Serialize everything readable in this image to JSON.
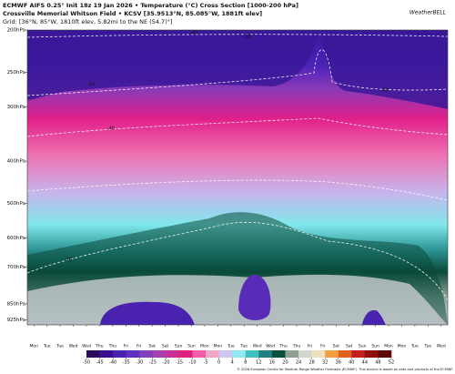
{
  "chart_data": {
    "type": "cross-section",
    "title": "ECMWF AIFS 0.25° Init 18z 19 Jan 2026 • Temperature (°C) Cross Section [1000-200 hPa]",
    "subtitle": "Crossville Memorial Whitson Field • KCSV [35.9513°N, 85.085°W, 1881ft elev]",
    "grid_note": "Grid: [36°N, 85°W, 1810ft elev, 5.82mi to the NE (54.7)°]",
    "logo": "WeatherBELL",
    "ylim": [
      200,
      950
    ],
    "log_y": true,
    "yticks": [
      {
        "value": 200,
        "label": "200hPa"
      },
      {
        "value": 250,
        "label": "250hPa"
      },
      {
        "value": 300,
        "label": "300hPa"
      },
      {
        "value": 400,
        "label": "400hPa"
      },
      {
        "value": 500,
        "label": "500hPa"
      },
      {
        "value": 600,
        "label": "600hPa"
      },
      {
        "value": 700,
        "label": "700hPa"
      },
      {
        "value": 850,
        "label": "850hPa"
      },
      {
        "value": 925,
        "label": "925hPa"
      }
    ],
    "categories": [
      "Mon",
      "Tue",
      "Tue",
      "Wed",
      "Wed",
      "Thu",
      "Thu",
      "Fri",
      "Fri",
      "Sat",
      "Sat",
      "Sun",
      "Sun",
      "Mon",
      "Mon",
      "Tue",
      "Tue",
      "Wed",
      "Wed",
      "Thu",
      "Thu",
      "Fri",
      "Fri",
      "Sat",
      "Sat",
      "Sun",
      "Sun",
      "Mon",
      "Mon",
      "Tue",
      "Tue",
      "Wed"
    ],
    "annotations": [
      "-60",
      "-60",
      "-50",
      "-50",
      "-40",
      "-10"
    ],
    "colorbar": {
      "ticks": [
        -50,
        -45,
        -40,
        -35,
        -30,
        -25,
        -20,
        -15,
        -10,
        -5,
        0,
        4,
        8,
        12,
        16,
        20,
        24,
        28,
        32,
        36,
        40,
        44,
        48,
        52
      ],
      "colors": [
        "#2a0a5a",
        "#3a1090",
        "#4a22b0",
        "#6030c0",
        "#8040c0",
        "#a840b0",
        "#c83098",
        "#e02080",
        "#f060a8",
        "#f0a8c8",
        "#d0c4f0",
        "#90e8f0",
        "#40c0c0",
        "#208080",
        "#0a5040",
        "#90a090",
        "#d0d8d0",
        "#f0e0c0",
        "#f0a040",
        "#e06020",
        "#c02020",
        "#901010",
        "#600808"
      ]
    },
    "footer": "© 2026 European Centre for Medium-Range Weather Forecasts (ECMWF). This service is based on data and products of the ECMWF."
  }
}
